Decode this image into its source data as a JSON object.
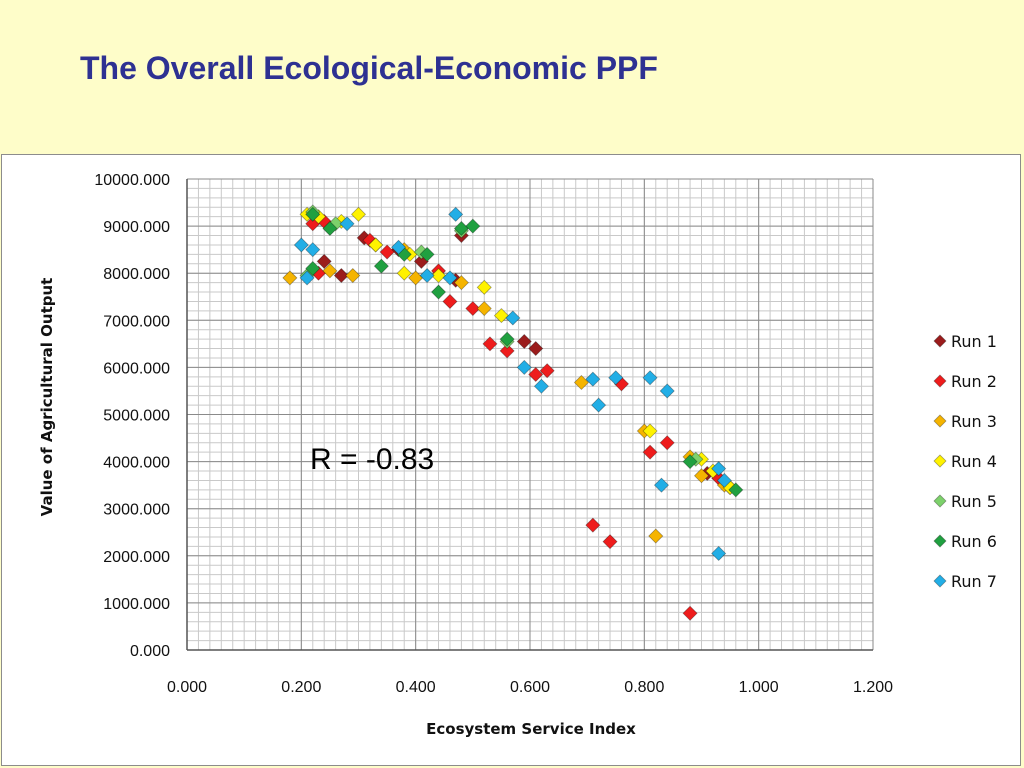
{
  "slide": {
    "title": "The Overall Ecological-Economic PPF"
  },
  "chart_data": {
    "type": "scatter",
    "xlabel": "Ecosystem Service Index",
    "ylabel": "Value of Agricultural Output",
    "xlim": [
      0,
      1.2
    ],
    "ylim": [
      0,
      10000
    ],
    "x_ticks": [
      "0.000",
      "0.200",
      "0.400",
      "0.600",
      "0.800",
      "1.000",
      "1.200"
    ],
    "y_ticks": [
      "0.000",
      "1000.000",
      "2000.000",
      "3000.000",
      "4000.000",
      "5000.000",
      "6000.000",
      "7000.000",
      "8000.000",
      "9000.000",
      "10000.000"
    ],
    "grid": true,
    "legend_position": "right",
    "annotation": "R = -0.83",
    "series": [
      {
        "name": "Run 1",
        "color": "#9b1c1c",
        "points": [
          [
            0.24,
            8250
          ],
          [
            0.27,
            7950
          ],
          [
            0.31,
            8750
          ],
          [
            0.37,
            8500
          ],
          [
            0.41,
            8250
          ],
          [
            0.47,
            7850
          ],
          [
            0.48,
            8800
          ],
          [
            0.59,
            6550
          ],
          [
            0.61,
            6400
          ],
          [
            0.91,
            3750
          ],
          [
            0.95,
            3450
          ]
        ]
      },
      {
        "name": "Run 2",
        "color": "#ee1c1c",
        "points": [
          [
            0.22,
            9050
          ],
          [
            0.23,
            8000
          ],
          [
            0.24,
            9100
          ],
          [
            0.32,
            8700
          ],
          [
            0.35,
            8450
          ],
          [
            0.44,
            8050
          ],
          [
            0.46,
            7400
          ],
          [
            0.5,
            7250
          ],
          [
            0.53,
            6500
          ],
          [
            0.56,
            6350
          ],
          [
            0.61,
            5850
          ],
          [
            0.63,
            5930
          ],
          [
            0.71,
            2650
          ],
          [
            0.74,
            2300
          ],
          [
            0.76,
            5650
          ],
          [
            0.81,
            4200
          ],
          [
            0.84,
            4400
          ],
          [
            0.88,
            780
          ],
          [
            0.93,
            3650
          ]
        ]
      },
      {
        "name": "Run 3",
        "color": "#f5b400",
        "points": [
          [
            0.18,
            7900
          ],
          [
            0.25,
            8050
          ],
          [
            0.29,
            7950
          ],
          [
            0.33,
            8600
          ],
          [
            0.38,
            8500
          ],
          [
            0.4,
            7900
          ],
          [
            0.48,
            7800
          ],
          [
            0.52,
            7250
          ],
          [
            0.69,
            5680
          ],
          [
            0.8,
            4650
          ],
          [
            0.82,
            2420
          ],
          [
            0.88,
            4100
          ],
          [
            0.9,
            3700
          ],
          [
            0.94,
            3500
          ]
        ]
      },
      {
        "name": "Run 4",
        "color": "#fff200",
        "points": [
          [
            0.21,
            9250
          ],
          [
            0.23,
            9200
          ],
          [
            0.27,
            9100
          ],
          [
            0.3,
            9250
          ],
          [
            0.33,
            8600
          ],
          [
            0.38,
            8000
          ],
          [
            0.39,
            8400
          ],
          [
            0.44,
            7950
          ],
          [
            0.52,
            7700
          ],
          [
            0.55,
            7100
          ],
          [
            0.81,
            4650
          ],
          [
            0.9,
            4050
          ],
          [
            0.92,
            3800
          ],
          [
            0.95,
            3450
          ]
        ]
      },
      {
        "name": "Run 5",
        "color": "#7dd16b",
        "points": [
          [
            0.21,
            7950
          ],
          [
            0.22,
            9300
          ],
          [
            0.26,
            9050
          ],
          [
            0.41,
            8450
          ],
          [
            0.48,
            8900
          ],
          [
            0.56,
            6550
          ],
          [
            0.89,
            4050
          ]
        ]
      },
      {
        "name": "Run 6",
        "color": "#20a040",
        "points": [
          [
            0.22,
            8100
          ],
          [
            0.22,
            9250
          ],
          [
            0.25,
            8950
          ],
          [
            0.34,
            8150
          ],
          [
            0.38,
            8400
          ],
          [
            0.42,
            8400
          ],
          [
            0.44,
            7600
          ],
          [
            0.48,
            8950
          ],
          [
            0.5,
            9000
          ],
          [
            0.56,
            6600
          ],
          [
            0.88,
            4000
          ],
          [
            0.96,
            3400
          ]
        ]
      },
      {
        "name": "Run 7",
        "color": "#22aee6",
        "points": [
          [
            0.2,
            8600
          ],
          [
            0.21,
            7900
          ],
          [
            0.22,
            8500
          ],
          [
            0.28,
            9050
          ],
          [
            0.37,
            8550
          ],
          [
            0.42,
            7950
          ],
          [
            0.46,
            7900
          ],
          [
            0.47,
            9250
          ],
          [
            0.57,
            7050
          ],
          [
            0.59,
            6000
          ],
          [
            0.62,
            5600
          ],
          [
            0.71,
            5750
          ],
          [
            0.72,
            5200
          ],
          [
            0.75,
            5780
          ],
          [
            0.81,
            5780
          ],
          [
            0.84,
            5500
          ],
          [
            0.83,
            3500
          ],
          [
            0.93,
            3850
          ],
          [
            0.93,
            2050
          ],
          [
            0.94,
            3600
          ]
        ]
      }
    ]
  }
}
